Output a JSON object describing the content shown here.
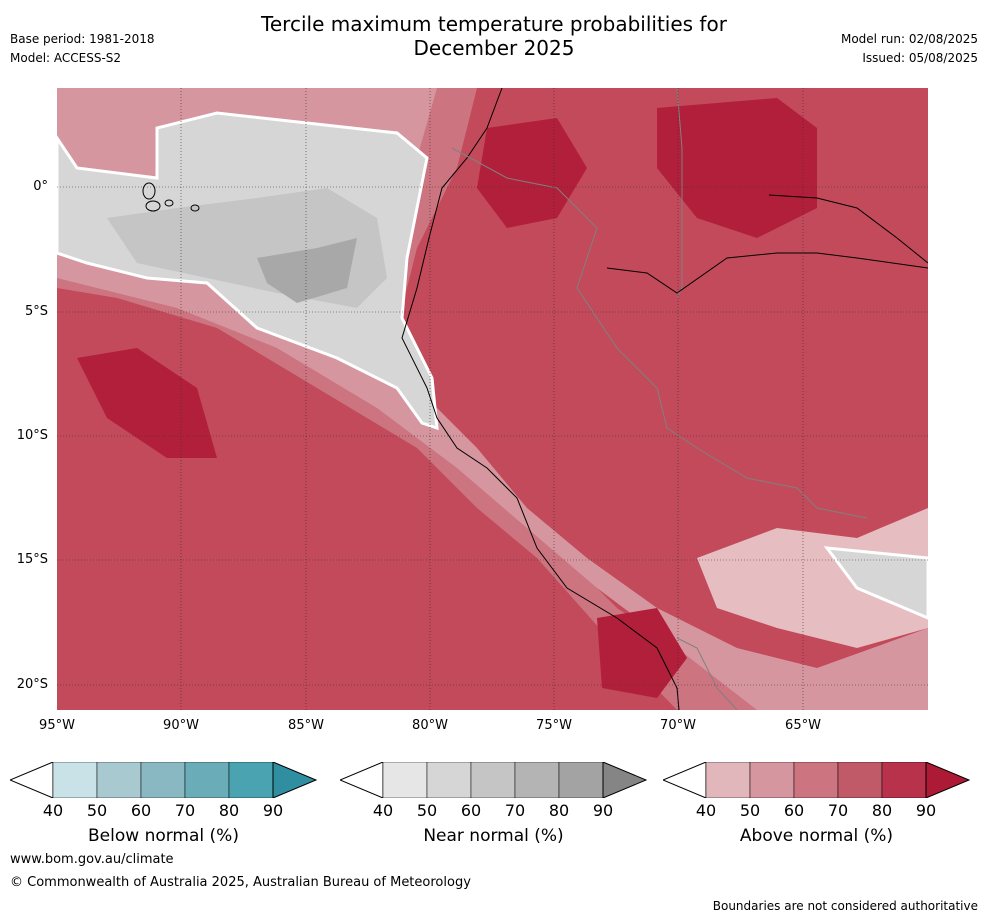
{
  "header": {
    "title_line1": "Tercile maximum temperature probabilities for",
    "title_line2": "December 2025",
    "base_period": "Base period: 1981-2018",
    "model": "Model: ACCESS-S2",
    "model_run": "Model run: 02/08/2025",
    "issued": "Issued: 05/08/2025"
  },
  "map": {
    "lon_ticks": [
      "95°W",
      "90°W",
      "85°W",
      "80°W",
      "75°W",
      "70°W",
      "65°W"
    ],
    "lat_ticks": [
      "0°",
      "5°S",
      "10°S",
      "15°S",
      "20°S"
    ],
    "colors": {
      "ocean_above": "#c0505e",
      "land_above": "#c24a5a",
      "above_90": "#b21f3a",
      "above_70": "#c75e6a",
      "above_60": "#cc7480",
      "above_50": "#d6969f",
      "above_40": "#e6bdc1",
      "near_50": "#d6d6d6",
      "near_60": "#c5c5c5",
      "near_70": "#a8a8a8"
    }
  },
  "colorbars": [
    {
      "name": "below",
      "label": "Below normal (%)",
      "ticks": [
        "40",
        "50",
        "60",
        "70",
        "80",
        "90"
      ],
      "colors": [
        "#ffffff",
        "#c9e2e8",
        "#a8c9d0",
        "#8ab8c2",
        "#6aadb9",
        "#49a3b1",
        "#2f8ea0"
      ]
    },
    {
      "name": "near",
      "label": "Near normal (%)",
      "ticks": [
        "40",
        "50",
        "60",
        "70",
        "80",
        "90"
      ],
      "colors": [
        "#ffffff",
        "#e6e6e6",
        "#d6d6d6",
        "#c5c5c5",
        "#b4b4b4",
        "#a3a3a3",
        "#858585"
      ]
    },
    {
      "name": "above",
      "label": "Above normal (%)",
      "ticks": [
        "40",
        "50",
        "60",
        "70",
        "80",
        "90"
      ],
      "colors": [
        "#ffffff",
        "#e1b7bb",
        "#d6969f",
        "#cc7480",
        "#c15a68",
        "#b7324a",
        "#ad1a36"
      ]
    }
  ],
  "footer": {
    "website": "www.bom.gov.au/climate",
    "copyright": "© Commonwealth of Australia 2025, Australian Bureau of Meteorology",
    "disclaimer": "Boundaries are not considered authoritative"
  }
}
